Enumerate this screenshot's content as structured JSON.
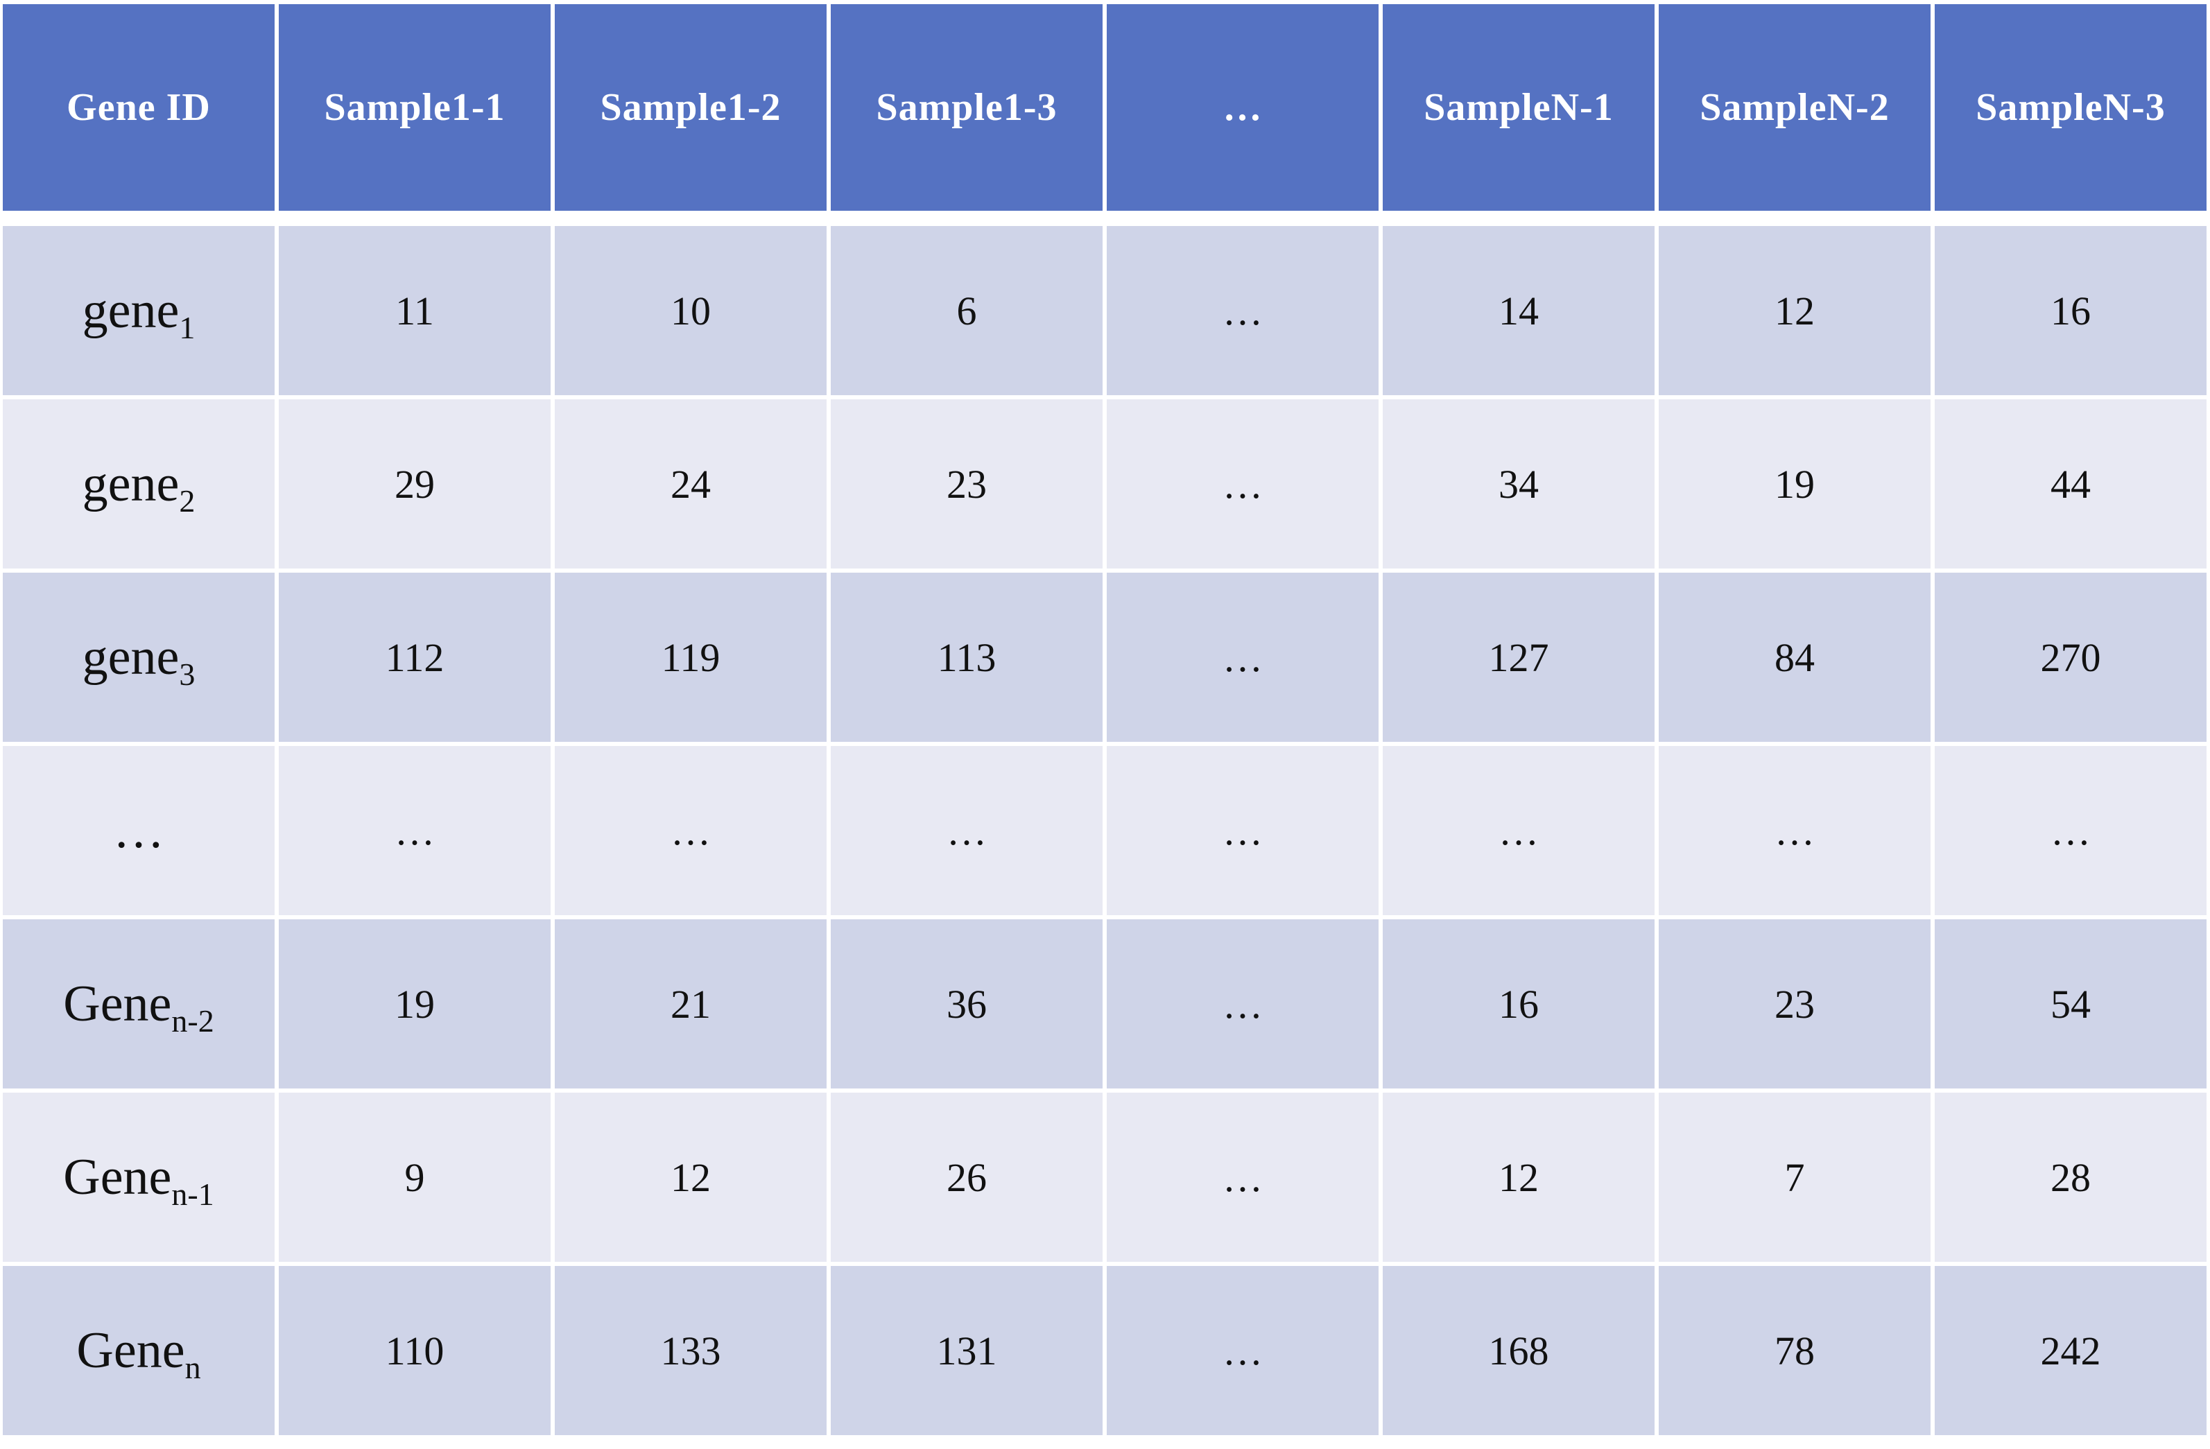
{
  "table": {
    "columns": [
      "Gene ID",
      "Sample1-1",
      "Sample1-2",
      "Sample1-3",
      "…",
      "SampleN-1",
      "SampleN-2",
      "SampleN-3"
    ],
    "rows": [
      {
        "gene_base": "gene",
        "gene_sub": "1",
        "values": [
          "11",
          "10",
          "6",
          "…",
          "14",
          "12",
          "16"
        ]
      },
      {
        "gene_base": "gene",
        "gene_sub": "2",
        "values": [
          "29",
          "24",
          "23",
          "…",
          "34",
          "19",
          "44"
        ]
      },
      {
        "gene_base": "gene",
        "gene_sub": "3",
        "values": [
          "112",
          "119",
          "113",
          "…",
          "127",
          "84",
          "270"
        ]
      },
      {
        "gene_base": "…",
        "gene_sub": "",
        "values": [
          "…",
          "…",
          "…",
          "…",
          "…",
          "…",
          "…"
        ]
      },
      {
        "gene_base": "Gene",
        "gene_sub": "n-2",
        "values": [
          "19",
          "21",
          "36",
          "…",
          "16",
          "23",
          "54"
        ]
      },
      {
        "gene_base": "Gene",
        "gene_sub": "n-1",
        "values": [
          "9",
          "12",
          "26",
          "…",
          "12",
          "7",
          "28"
        ]
      },
      {
        "gene_base": "Gene",
        "gene_sub": "n",
        "values": [
          "110",
          "133",
          "131",
          "…",
          "168",
          "78",
          "242"
        ]
      }
    ]
  },
  "colors": {
    "header": "#5572c2",
    "row_dark": "#cfd4e8",
    "row_light": "#e8e9f3"
  }
}
